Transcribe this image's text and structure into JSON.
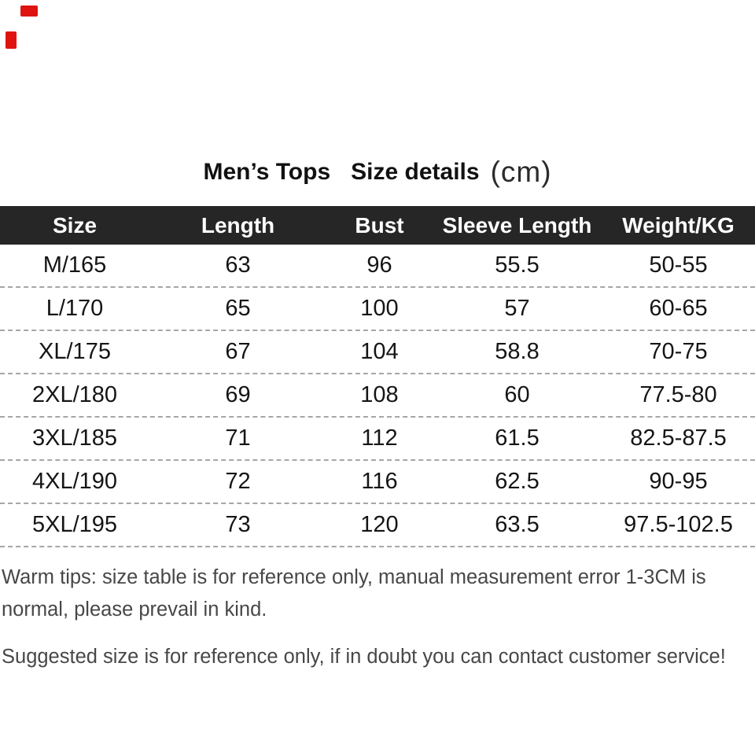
{
  "watermark": {
    "color": "#df1410"
  },
  "title": {
    "part1": "Men’s Tops",
    "part2": "Size details",
    "unit": "(cm)"
  },
  "table": {
    "headers": [
      "Size",
      "Length",
      "Bust",
      "Sleeve Length",
      "Weight/KG"
    ],
    "rows": [
      [
        "M/165",
        "63",
        "96",
        "55.5",
        "50-55"
      ],
      [
        "L/170",
        "65",
        "100",
        "57",
        "60-65"
      ],
      [
        "XL/175",
        "67",
        "104",
        "58.8",
        "70-75"
      ],
      [
        "2XL/180",
        "69",
        "108",
        "60",
        "77.5-80"
      ],
      [
        "3XL/185",
        "71",
        "112",
        "61.5",
        "82.5-87.5"
      ],
      [
        "4XL/190",
        "72",
        "116",
        "62.5",
        "90-95"
      ],
      [
        "5XL/195",
        "73",
        "120",
        "63.5",
        "97.5-102.5"
      ]
    ]
  },
  "notes": {
    "warm_tips": "Warm tips: size table is for reference only, manual measurement error 1-3CM is normal, please prevail in kind.",
    "suggestion": "Suggested size is for reference only, if in doubt you can contact customer service!"
  }
}
